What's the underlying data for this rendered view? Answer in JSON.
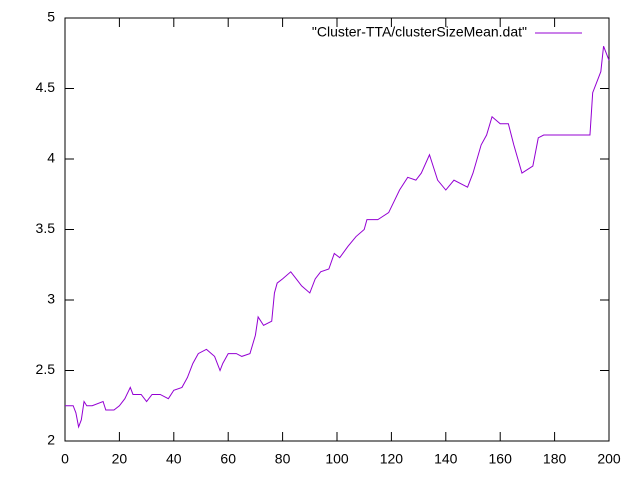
{
  "chart_data": {
    "type": "line",
    "x": [
      0,
      3,
      4,
      5,
      6,
      7,
      8,
      10,
      14,
      15,
      18,
      20,
      22,
      24,
      25,
      28,
      30,
      32,
      35,
      38,
      40,
      43,
      45,
      47,
      49,
      52,
      55,
      57,
      58,
      60,
      63,
      65,
      68,
      70,
      71,
      73,
      76,
      77,
      78,
      80,
      83,
      85,
      87,
      90,
      92,
      94,
      97,
      99,
      101,
      104,
      107,
      110,
      111,
      115,
      119,
      121,
      123,
      126,
      129,
      131,
      134,
      137,
      140,
      143,
      148,
      150,
      153,
      155,
      157,
      160,
      163,
      165,
      168,
      172,
      174,
      176,
      185,
      193,
      194,
      197,
      198,
      200
    ],
    "series": [
      {
        "name": "\"Cluster-TTA/clusterSizeMean.dat\"",
        "color": "#9400d3",
        "values": [
          2.25,
          2.25,
          2.2,
          2.1,
          2.15,
          2.28,
          2.25,
          2.25,
          2.28,
          2.22,
          2.22,
          2.25,
          2.3,
          2.38,
          2.33,
          2.33,
          2.28,
          2.33,
          2.33,
          2.3,
          2.36,
          2.38,
          2.45,
          2.55,
          2.62,
          2.65,
          2.6,
          2.5,
          2.55,
          2.62,
          2.62,
          2.6,
          2.62,
          2.75,
          2.88,
          2.82,
          2.85,
          3.05,
          3.12,
          3.15,
          3.2,
          3.15,
          3.1,
          3.05,
          3.15,
          3.2,
          3.22,
          3.33,
          3.3,
          3.38,
          3.45,
          3.5,
          3.57,
          3.57,
          3.62,
          3.7,
          3.78,
          3.87,
          3.85,
          3.9,
          4.03,
          3.85,
          3.78,
          3.85,
          3.8,
          3.9,
          4.1,
          4.17,
          4.3,
          4.25,
          4.25,
          4.1,
          3.9,
          3.95,
          4.15,
          4.17,
          4.17,
          4.17,
          4.47,
          4.62,
          4.8,
          4.7
        ]
      }
    ],
    "xlim": [
      0,
      200
    ],
    "ylim": [
      2,
      5
    ],
    "xticks": [
      0,
      20,
      40,
      60,
      80,
      100,
      120,
      140,
      160,
      180,
      200
    ],
    "yticks": [
      2,
      2.5,
      3,
      3.5,
      4,
      4.5,
      5
    ],
    "legend": "top-right"
  }
}
